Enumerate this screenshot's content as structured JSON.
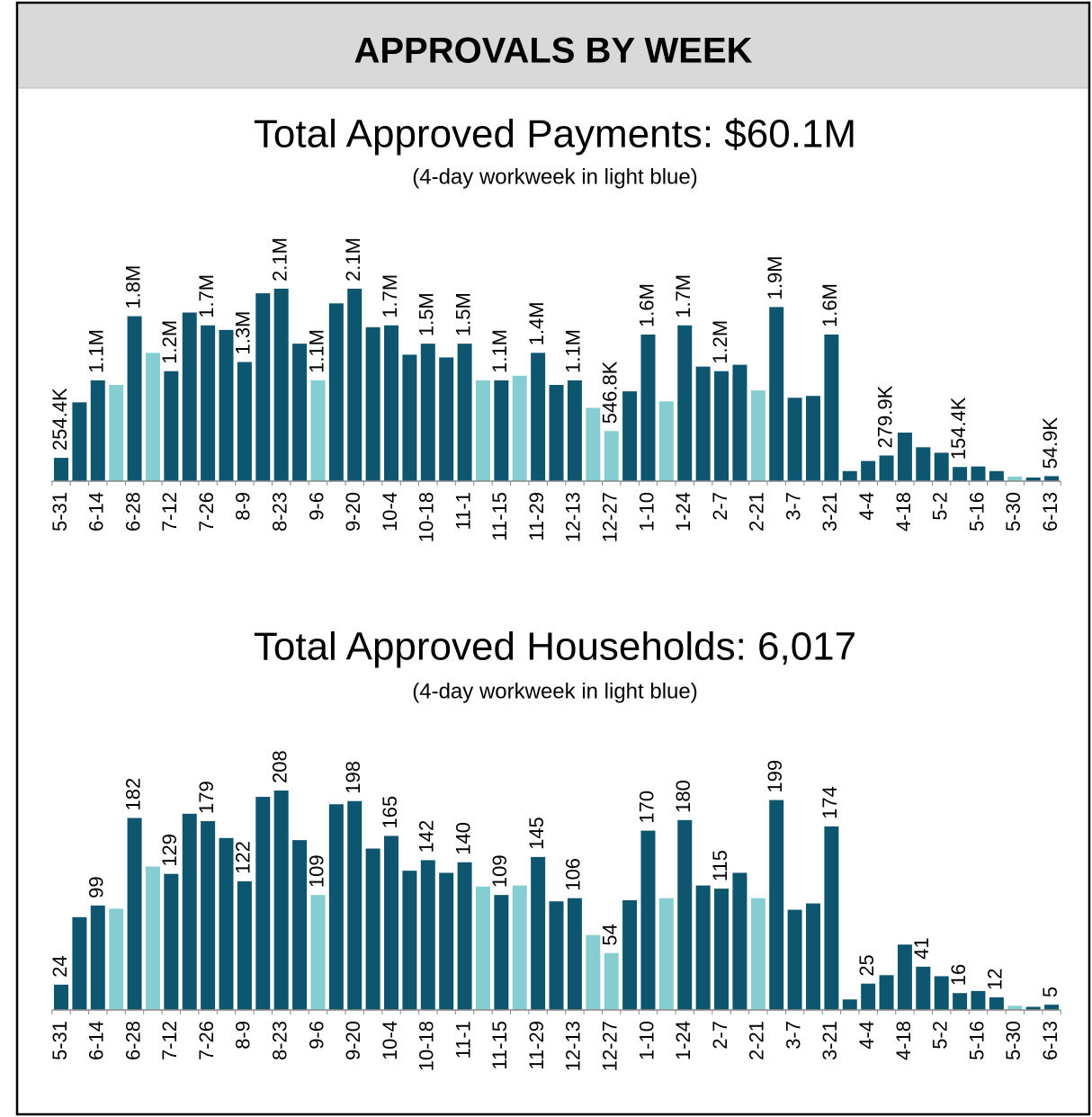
{
  "header": {
    "title": "APPROVALS BY WEEK"
  },
  "chart_data": [
    {
      "type": "bar",
      "title": "Total Approved Payments: $60.1M",
      "subtitle": "(4-day workweek in light blue)",
      "categories": [
        "5-31",
        null,
        "6-14",
        null,
        "6-28",
        null,
        "7-12",
        null,
        "7-26",
        null,
        "8-9",
        null,
        "8-23",
        null,
        "9-6",
        null,
        "9-20",
        null,
        "10-4",
        null,
        "10-18",
        null,
        "11-1",
        null,
        "11-15",
        null,
        "11-29",
        null,
        "12-13",
        null,
        "12-27",
        null,
        "1-10",
        null,
        "1-24",
        null,
        "2-7",
        null,
        "2-21",
        null,
        "3-7",
        null,
        "3-21",
        null,
        "4-4",
        null,
        "4-18",
        null,
        "5-2",
        null,
        "5-16",
        null,
        "5-30",
        null,
        "6-13"
      ],
      "values": [
        254400,
        860000,
        1100000,
        1050000,
        1800000,
        1400000,
        1200000,
        1840000,
        1700000,
        1650000,
        1300000,
        2050000,
        2100000,
        1500000,
        1100000,
        1940000,
        2100000,
        1680000,
        1700000,
        1380000,
        1500000,
        1350000,
        1500000,
        1100000,
        1100000,
        1150000,
        1400000,
        1050000,
        1100000,
        800000,
        546800,
        980000,
        1600000,
        870000,
        1700000,
        1250000,
        1200000,
        1270000,
        990000,
        1900000,
        910000,
        930000,
        1600000,
        110000,
        220000,
        279900,
        530000,
        370000,
        310000,
        154400,
        160000,
        110000,
        50000,
        40000,
        54900
      ],
      "value_labels": [
        "254.4K",
        null,
        "1.1M",
        null,
        "1.8M",
        null,
        "1.2M",
        null,
        "1.7M",
        null,
        "1.3M",
        null,
        "2.1M",
        null,
        "1.1M",
        null,
        "2.1M",
        null,
        "1.7M",
        null,
        "1.5M",
        null,
        "1.5M",
        null,
        "1.1M",
        null,
        "1.4M",
        null,
        "1.1M",
        null,
        "546.8K",
        null,
        "1.6M",
        null,
        "1.7M",
        null,
        "1.2M",
        null,
        null,
        "1.9M",
        null,
        null,
        "1.6M",
        null,
        null,
        "279.9K",
        null,
        null,
        null,
        "154.4K",
        null,
        null,
        null,
        null,
        "54.9K"
      ],
      "colors": [
        "#0e5670",
        "#0e5670",
        "#0e5670",
        "#86cdd2",
        "#0e5670",
        "#86cdd2",
        "#0e5670",
        "#0e5670",
        "#0e5670",
        "#0e5670",
        "#0e5670",
        "#0e5670",
        "#0e5670",
        "#0e5670",
        "#86cdd2",
        "#0e5670",
        "#0e5670",
        "#0e5670",
        "#0e5670",
        "#0e5670",
        "#0e5670",
        "#0e5670",
        "#0e5670",
        "#86cdd2",
        "#0e5670",
        "#86cdd2",
        "#0e5670",
        "#0e5670",
        "#0e5670",
        "#86cdd2",
        "#86cdd2",
        "#0e5670",
        "#0e5670",
        "#86cdd2",
        "#0e5670",
        "#0e5670",
        "#0e5670",
        "#0e5670",
        "#86cdd2",
        "#0e5670",
        "#0e5670",
        "#0e5670",
        "#0e5670",
        "#0e5670",
        "#0e5670",
        "#0e5670",
        "#0e5670",
        "#0e5670",
        "#0e5670",
        "#0e5670",
        "#0e5670",
        "#0e5670",
        "#86cdd2",
        "#0e5670",
        "#0e5670"
      ]
    },
    {
      "type": "bar",
      "title": "Total Approved Households: 6,017",
      "subtitle": "(4-day workweek in light blue)",
      "categories": [
        "5-31",
        null,
        "6-14",
        null,
        "6-28",
        null,
        "7-12",
        null,
        "7-26",
        null,
        "8-9",
        null,
        "8-23",
        null,
        "9-6",
        null,
        "9-20",
        null,
        "10-4",
        null,
        "10-18",
        null,
        "11-1",
        null,
        "11-15",
        null,
        "11-29",
        null,
        "12-13",
        null,
        "12-27",
        null,
        "1-10",
        null,
        "1-24",
        null,
        "2-7",
        null,
        "2-21",
        null,
        "3-7",
        null,
        "3-21",
        null,
        "4-4",
        null,
        "4-18",
        null,
        "5-2",
        null,
        "5-16",
        null,
        "5-30",
        null,
        "6-13"
      ],
      "values": [
        24,
        88,
        99,
        96,
        182,
        136,
        129,
        186,
        179,
        163,
        122,
        202,
        208,
        161,
        109,
        195,
        198,
        153,
        165,
        132,
        142,
        130,
        140,
        117,
        109,
        118,
        145,
        103,
        106,
        71,
        54,
        104,
        170,
        106,
        180,
        118,
        115,
        130,
        106,
        199,
        95,
        101,
        174,
        10,
        25,
        33,
        62,
        41,
        32,
        16,
        18,
        12,
        4,
        3,
        5
      ],
      "value_labels": [
        "24",
        null,
        "99",
        null,
        "182",
        null,
        "129",
        null,
        "179",
        null,
        "122",
        null,
        "208",
        null,
        "109",
        null,
        "198",
        null,
        "165",
        null,
        "142",
        null,
        "140",
        null,
        "109",
        null,
        "145",
        null,
        "106",
        null,
        "54",
        null,
        "170",
        null,
        "180",
        null,
        "115",
        null,
        null,
        "199",
        null,
        null,
        "174",
        null,
        "25",
        null,
        null,
        "41",
        null,
        "16",
        null,
        "12",
        null,
        null,
        "5"
      ],
      "colors": [
        "#0e5670",
        "#0e5670",
        "#0e5670",
        "#86cdd2",
        "#0e5670",
        "#86cdd2",
        "#0e5670",
        "#0e5670",
        "#0e5670",
        "#0e5670",
        "#0e5670",
        "#0e5670",
        "#0e5670",
        "#0e5670",
        "#86cdd2",
        "#0e5670",
        "#0e5670",
        "#0e5670",
        "#0e5670",
        "#0e5670",
        "#0e5670",
        "#0e5670",
        "#0e5670",
        "#86cdd2",
        "#0e5670",
        "#86cdd2",
        "#0e5670",
        "#0e5670",
        "#0e5670",
        "#86cdd2",
        "#86cdd2",
        "#0e5670",
        "#0e5670",
        "#86cdd2",
        "#0e5670",
        "#0e5670",
        "#0e5670",
        "#0e5670",
        "#86cdd2",
        "#0e5670",
        "#0e5670",
        "#0e5670",
        "#0e5670",
        "#0e5670",
        "#0e5670",
        "#0e5670",
        "#0e5670",
        "#0e5670",
        "#0e5670",
        "#0e5670",
        "#0e5670",
        "#0e5670",
        "#86cdd2",
        "#0e5670",
        "#0e5670"
      ]
    }
  ]
}
